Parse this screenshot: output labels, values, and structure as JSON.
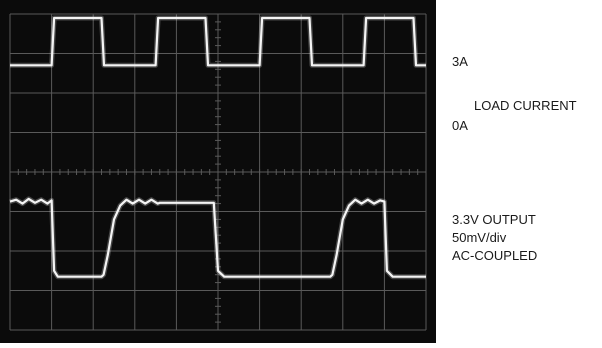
{
  "chart_data": {
    "type": "line",
    "title": "",
    "xlabel": "",
    "ylabel": "",
    "grid": true,
    "divisions": {
      "x": 10,
      "y": 8
    },
    "series": [
      {
        "name": "LOAD CURRENT",
        "x": [
          0,
          1.0,
          1.06,
          2.2,
          2.26,
          3.5,
          3.56,
          4.7,
          4.76,
          6.0,
          6.06,
          7.2,
          7.26,
          8.5,
          8.56,
          9.7,
          9.76,
          10
        ],
        "y": [
          2.7,
          2.7,
          3.9,
          3.9,
          2.7,
          2.7,
          3.9,
          3.9,
          2.7,
          2.7,
          3.9,
          3.9,
          2.7,
          2.7,
          3.9,
          3.9,
          2.7,
          2.7
        ]
      },
      {
        "name": "3.3V OUTPUT",
        "x": [
          0,
          0.15,
          0.3,
          0.45,
          0.6,
          0.75,
          0.9,
          1.0,
          1.06,
          1.15,
          2.2,
          2.25,
          2.35,
          2.5,
          2.65,
          2.8,
          2.95,
          3.1,
          3.25,
          3.4,
          3.55,
          3.6,
          4.9,
          5.0,
          5.15,
          5.3,
          5.45,
          5.6,
          5.75,
          5.9,
          6.05,
          6.2,
          6.35,
          6.5,
          7.7,
          7.75,
          7.85,
          8.0,
          8.15,
          8.3,
          8.45,
          8.6,
          8.75,
          8.9,
          9.0,
          9.06,
          9.2,
          10
        ],
        "y": [
          -0.75,
          -0.7,
          -0.8,
          -0.68,
          -0.78,
          -0.7,
          -0.8,
          -0.72,
          -2.5,
          -2.65,
          -2.65,
          -2.6,
          -2.1,
          -1.2,
          -0.85,
          -0.7,
          -0.8,
          -0.7,
          -0.8,
          -0.7,
          -0.8,
          -0.78,
          -0.78,
          -2.5,
          -2.65,
          -2.65,
          -2.65,
          -2.65,
          -2.65,
          -2.65,
          -2.65,
          -2.65,
          -2.65,
          -2.65,
          -2.65,
          -2.6,
          -2.1,
          -1.2,
          -0.85,
          -0.7,
          -0.8,
          -0.7,
          -0.8,
          -0.72,
          -0.75,
          -2.5,
          -2.65,
          -2.65
        ]
      }
    ]
  },
  "labels": {
    "current_high": "3A",
    "current_name": "LOAD CURRENT",
    "current_low": "0A",
    "output_name": "3.3V OUTPUT",
    "output_scale": "50mV/div",
    "output_coupling": "AC-COUPLED"
  },
  "colors": {
    "screen": "#0b0b0b",
    "grid": "#5a5a5a",
    "trace": "#f4f4f4"
  }
}
